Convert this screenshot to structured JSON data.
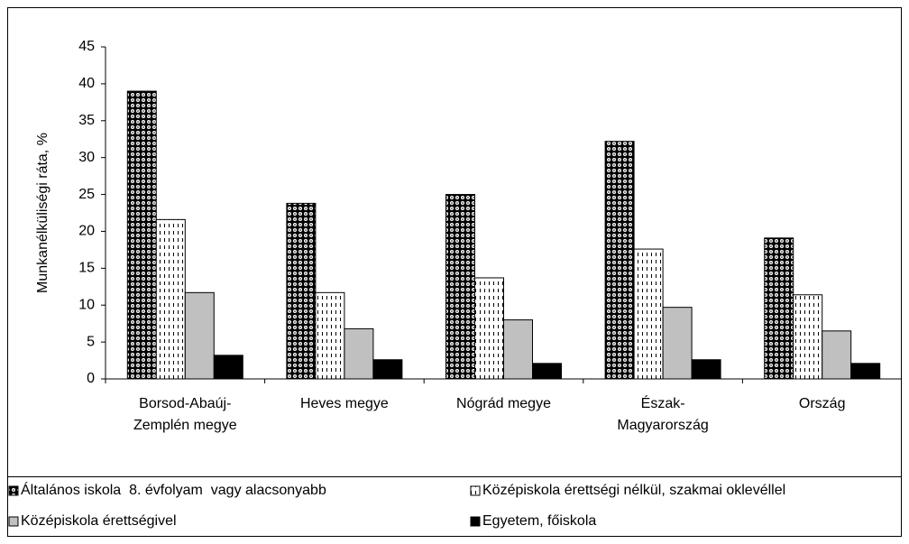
{
  "chart_data": {
    "type": "bar",
    "y_label": "Munkanélküliségi ráta, %",
    "categories": [
      "Borsod-Abaúj-Zemplén megye",
      "Heves megye",
      "Nógrád megye",
      "Észak-Magyarország",
      "Ország"
    ],
    "series": [
      {
        "name": "Általános iskola  8. évfolyam  vagy alacsonyabb",
        "color": "#000000",
        "pattern": "dots",
        "values": [
          39,
          23.8,
          25,
          32.2,
          19.1
        ]
      },
      {
        "name": "Középiskola érettségi nélkül, szakmai oklevéllel",
        "color": "#000000",
        "pattern": "dashes",
        "values": [
          21.6,
          11.7,
          13.7,
          17.6,
          11.4
        ]
      },
      {
        "name": "Középiskola érettségivel",
        "color": "#c0c0c0",
        "pattern": "solid",
        "values": [
          11.7,
          6.8,
          8,
          9.7,
          6.5
        ]
      },
      {
        "name": "Egyetem, főiskola",
        "color": "#000000",
        "pattern": "solid",
        "values": [
          3.2,
          2.6,
          2.1,
          2.6,
          2.1
        ]
      }
    ],
    "ylim": [
      0,
      45
    ],
    "yticks": [
      0,
      5,
      10,
      15,
      20,
      25,
      30,
      35,
      40,
      45
    ],
    "grid": false,
    "legend": "bottom"
  }
}
